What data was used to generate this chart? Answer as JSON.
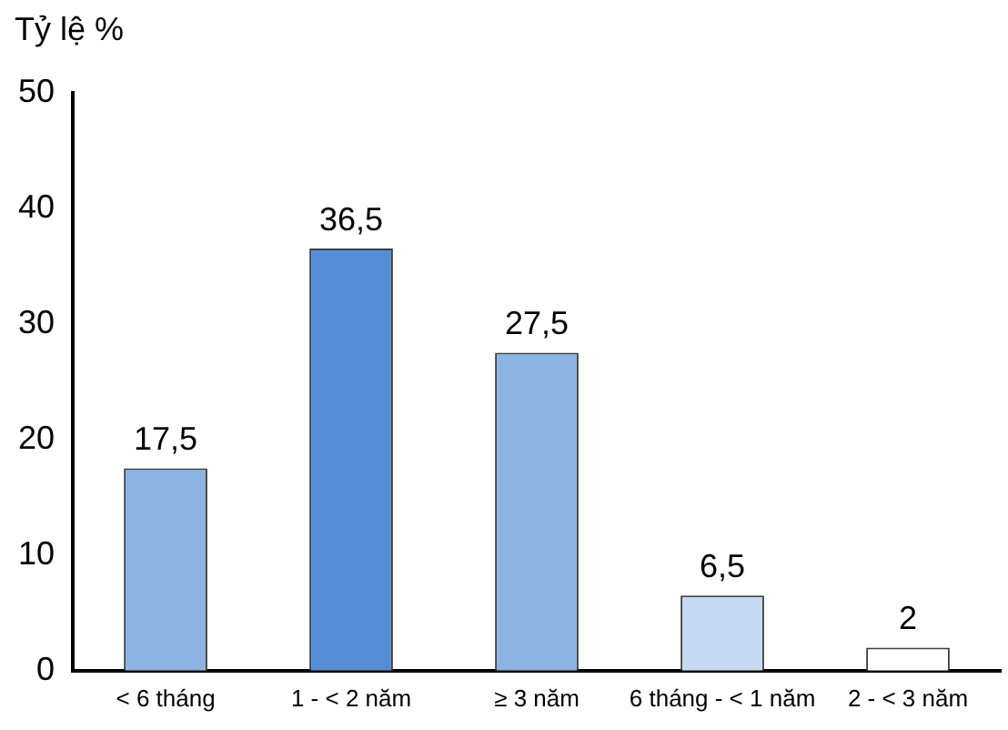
{
  "chart_data": {
    "type": "bar",
    "ylabel": "Tỷ lệ %",
    "categories": [
      "< 6 tháng",
      "1 - < 2 năm",
      "≥ 3 năm",
      "6 tháng - < 1 năm",
      "2 - < 3 năm"
    ],
    "values": [
      17.5,
      36.5,
      27.5,
      6.5,
      2
    ],
    "value_labels": [
      "17,5",
      "36,5",
      "27,5",
      "6,5",
      "2"
    ],
    "colors": [
      "#8db3e2",
      "#558ed5",
      "#8db3e2",
      "#c6d9f1",
      "#ffffff"
    ],
    "ylim": [
      0,
      50
    ],
    "yticks": [
      0,
      10,
      20,
      30,
      40,
      50
    ],
    "grid": false,
    "legend": false
  }
}
